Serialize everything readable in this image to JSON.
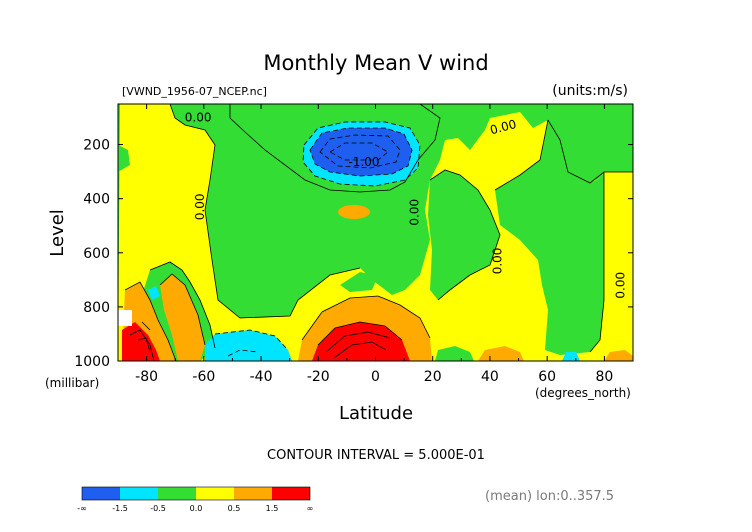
{
  "chart_data": {
    "type": "heatmap",
    "title": "Monthly Mean V wind",
    "dataset_label": "[VWND_1956-07_NCEP.nc]",
    "units_label": "(units:m/s)",
    "xlabel": "Latitude",
    "x_unit_label": "(degrees_north)",
    "ylabel": "Level",
    "y_unit_label": "(millibar)",
    "xlim": [
      -90,
      90
    ],
    "ylim": [
      1000,
      50
    ],
    "x_ticks": [
      -80,
      -60,
      -40,
      -20,
      0,
      20,
      40,
      60,
      80
    ],
    "y_ticks": [
      200,
      400,
      600,
      800,
      1000
    ],
    "contour_interval_text": "CONTOUR INTERVAL = 5.000E-01",
    "footer_note": "(mean) lon:0..357.5",
    "contour_labels": [
      {
        "text": "0.00",
        "lat": -62,
        "lev": 115
      },
      {
        "text": "-1.00",
        "lat": -4,
        "lev": 280
      },
      {
        "text": "0.00",
        "lat": 45,
        "lev": 150
      },
      {
        "text": "0.00",
        "lat": -60,
        "lev": 430
      },
      {
        "text": "0.00",
        "lat": 15,
        "lev": 450
      },
      {
        "text": "0.00",
        "lat": 44,
        "lev": 630
      },
      {
        "text": "0.00",
        "lat": 87,
        "lev": 720
      }
    ],
    "colorbar": {
      "levels": [
        "-∞",
        "-1.5",
        "-0.5",
        "0.0",
        "0.5",
        "1.5",
        "∞"
      ],
      "colors": [
        "#1e5ff0",
        "#00e5ff",
        "#33dd33",
        "#ffff00",
        "#ffaa00",
        "#ff0000"
      ]
    },
    "fill_colors": {
      "strong_south": "#1e5ff0",
      "south": "#00e5ff",
      "near_zero_south": "#33dd33",
      "near_zero_north": "#ffff00",
      "north": "#ffaa00",
      "strong_north": "#ff0000"
    }
  }
}
